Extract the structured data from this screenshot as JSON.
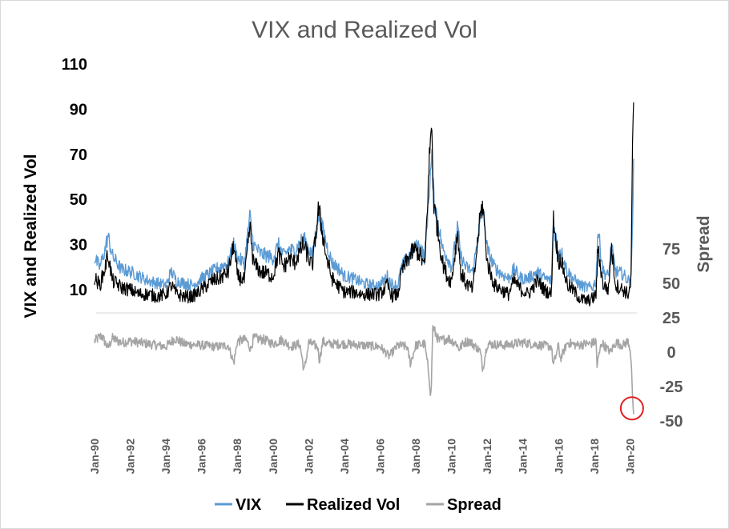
{
  "chart_data": {
    "type": "line",
    "title": "VIX and Realized Vol",
    "ylabel_left": "VIX and Realized Vol",
    "ylabel_right": "Spread",
    "left_axis": {
      "ticks": [
        10,
        30,
        50,
        70,
        90,
        110
      ],
      "range": [
        5,
        110
      ]
    },
    "right_axis": {
      "ticks": [
        -50,
        -25,
        0,
        25,
        50,
        75
      ],
      "range": [
        -50,
        90
      ]
    },
    "x_axis": {
      "ticks": [
        "Jan-90",
        "Jan-92",
        "Jan-94",
        "Jan-96",
        "Jan-98",
        "Jan-00",
        "Jan-02",
        "Jan-04",
        "Jan-06",
        "Jan-08",
        "Jan-10",
        "Jan-12",
        "Jan-14",
        "Jan-16",
        "Jan-18",
        "Jan-20"
      ],
      "range": [
        1990.0,
        2020.25
      ]
    },
    "legend": {
      "position": "bottom",
      "items": [
        "VIX",
        "Realized Vol",
        "Spread"
      ]
    },
    "colors": {
      "VIX": "#5b9bd5",
      "Realized Vol": "#000000",
      "Spread": "#a5a5a5",
      "highlight": "#e02020"
    },
    "annotation": {
      "type": "circle",
      "x": 2020.2,
      "y_right": -42,
      "color": "#e02020"
    },
    "series": [
      {
        "name": "VIX",
        "axis": "left",
        "x": [
          1990.0,
          1990.3,
          1990.6,
          1990.75,
          1991.0,
          1991.5,
          1992.0,
          1992.5,
          1993.0,
          1993.5,
          1994.0,
          1994.3,
          1994.6,
          1995.0,
          1995.5,
          1996.0,
          1996.6,
          1997.0,
          1997.5,
          1997.8,
          1998.0,
          1998.4,
          1998.7,
          1998.9,
          1999.3,
          1999.7,
          2000.0,
          2000.3,
          2000.6,
          2000.9,
          2001.2,
          2001.7,
          2001.9,
          2002.2,
          2002.55,
          2002.75,
          2003.0,
          2003.3,
          2003.6,
          2004.0,
          2004.5,
          2005.0,
          2005.5,
          2006.0,
          2006.4,
          2006.7,
          2007.0,
          2007.2,
          2007.6,
          2007.9,
          2008.2,
          2008.5,
          2008.8,
          2008.9,
          2009.0,
          2009.2,
          2009.5,
          2009.8,
          2010.0,
          2010.35,
          2010.5,
          2010.8,
          2011.2,
          2011.6,
          2011.75,
          2012.0,
          2012.4,
          2012.8,
          2013.2,
          2013.5,
          2013.9,
          2014.3,
          2014.8,
          2015.2,
          2015.6,
          2015.7,
          2016.0,
          2016.1,
          2016.5,
          2016.8,
          2017.2,
          2017.6,
          2017.9,
          2018.1,
          2018.2,
          2018.5,
          2018.8,
          2018.95,
          2019.2,
          2019.6,
          2019.9,
          2020.05,
          2020.15,
          2020.2
        ],
        "values": [
          24,
          20,
          28,
          34,
          25,
          19,
          18,
          16,
          14,
          13,
          12,
          18,
          14,
          13,
          12,
          15,
          18,
          20,
          22,
          30,
          24,
          22,
          43,
          30,
          26,
          25,
          24,
          30,
          25,
          28,
          27,
          33,
          30,
          25,
          43,
          38,
          30,
          22,
          20,
          16,
          15,
          13,
          12,
          12,
          16,
          12,
          12,
          20,
          25,
          28,
          30,
          24,
          60,
          68,
          52,
          42,
          28,
          24,
          20,
          38,
          25,
          20,
          18,
          40,
          46,
          28,
          20,
          17,
          15,
          19,
          15,
          15,
          18,
          15,
          14,
          40,
          26,
          28,
          18,
          15,
          12,
          11,
          11,
          14,
          37,
          18,
          16,
          30,
          18,
          17,
          14,
          15,
          40,
          68
        ]
      },
      {
        "name": "Realized Vol",
        "axis": "left",
        "x": [
          1990.0,
          1990.3,
          1990.6,
          1990.75,
          1991.0,
          1991.5,
          1992.0,
          1992.5,
          1993.0,
          1993.5,
          1994.0,
          1994.3,
          1994.6,
          1995.0,
          1995.5,
          1996.0,
          1996.6,
          1997.0,
          1997.5,
          1997.8,
          1998.0,
          1998.4,
          1998.7,
          1998.9,
          1999.3,
          1999.7,
          2000.0,
          2000.3,
          2000.6,
          2000.9,
          2001.2,
          2001.7,
          2001.9,
          2002.2,
          2002.55,
          2002.75,
          2003.0,
          2003.3,
          2003.6,
          2004.0,
          2004.5,
          2005.0,
          2005.5,
          2006.0,
          2006.4,
          2006.7,
          2007.0,
          2007.2,
          2007.6,
          2007.9,
          2008.2,
          2008.5,
          2008.8,
          2008.9,
          2009.0,
          2009.2,
          2009.5,
          2009.8,
          2010.0,
          2010.35,
          2010.5,
          2010.8,
          2011.2,
          2011.6,
          2011.75,
          2012.0,
          2012.4,
          2012.8,
          2013.2,
          2013.5,
          2013.9,
          2014.3,
          2014.8,
          2015.2,
          2015.6,
          2015.7,
          2016.0,
          2016.1,
          2016.5,
          2016.8,
          2017.2,
          2017.6,
          2017.9,
          2018.1,
          2018.2,
          2018.5,
          2018.8,
          2018.95,
          2019.2,
          2019.6,
          2019.9,
          2020.05,
          2020.15,
          2020.2
        ],
        "values": [
          15,
          12,
          20,
          26,
          14,
          11,
          10,
          8,
          8,
          7,
          8,
          12,
          8,
          7,
          7,
          10,
          14,
          15,
          18,
          30,
          16,
          14,
          38,
          22,
          18,
          17,
          16,
          26,
          20,
          24,
          22,
          30,
          26,
          20,
          46,
          36,
          24,
          15,
          12,
          9,
          9,
          8,
          8,
          8,
          12,
          7,
          8,
          18,
          24,
          28,
          26,
          20,
          75,
          82,
          48,
          38,
          22,
          15,
          14,
          36,
          18,
          13,
          10,
          42,
          48,
          22,
          12,
          10,
          8,
          14,
          10,
          8,
          14,
          10,
          8,
          42,
          22,
          24,
          12,
          10,
          6,
          5,
          6,
          8,
          28,
          12,
          10,
          29,
          12,
          10,
          8,
          12,
          80,
          93
        ]
      },
      {
        "name": "Spread",
        "axis": "right",
        "x": [
          1990.0,
          1990.4,
          1990.75,
          1991.0,
          1991.5,
          1992.0,
          1993.0,
          1994.0,
          1994.5,
          1995.0,
          1996.0,
          1996.8,
          1997.5,
          1997.8,
          1998.0,
          1998.5,
          1998.75,
          1998.9,
          1999.5,
          2000.0,
          2000.5,
          2001.0,
          2001.5,
          2001.75,
          2002.0,
          2002.5,
          2002.6,
          2002.8,
          2003.0,
          2004.0,
          2005.0,
          2006.0,
          2006.5,
          2007.0,
          2007.5,
          2007.7,
          2008.0,
          2008.5,
          2008.75,
          2008.85,
          2008.95,
          2009.3,
          2009.8,
          2010.3,
          2010.4,
          2010.7,
          2011.0,
          2011.6,
          2011.75,
          2012.0,
          2013.0,
          2014.0,
          2015.0,
          2015.6,
          2015.7,
          2016.0,
          2016.1,
          2016.5,
          2017.0,
          2017.5,
          2017.8,
          2018.1,
          2018.15,
          2018.4,
          2018.9,
          2019.2,
          2019.6,
          2019.9,
          2020.0,
          2020.08,
          2020.15,
          2020.2
        ],
        "values": [
          8,
          12,
          3,
          10,
          7,
          8,
          6,
          4,
          10,
          6,
          5,
          4,
          5,
          -8,
          8,
          9,
          2,
          10,
          9,
          6,
          9,
          4,
          6,
          -14,
          7,
          4,
          -6,
          8,
          6,
          6,
          5,
          4,
          -3,
          5,
          4,
          -8,
          5,
          6,
          -18,
          -33,
          18,
          8,
          10,
          6,
          2,
          7,
          8,
          1,
          -12,
          6,
          5,
          7,
          5,
          4,
          -10,
          5,
          -5,
          7,
          5,
          6,
          6,
          8,
          -10,
          7,
          0,
          7,
          5,
          8,
          2,
          -10,
          -35,
          -45
        ]
      }
    ]
  }
}
